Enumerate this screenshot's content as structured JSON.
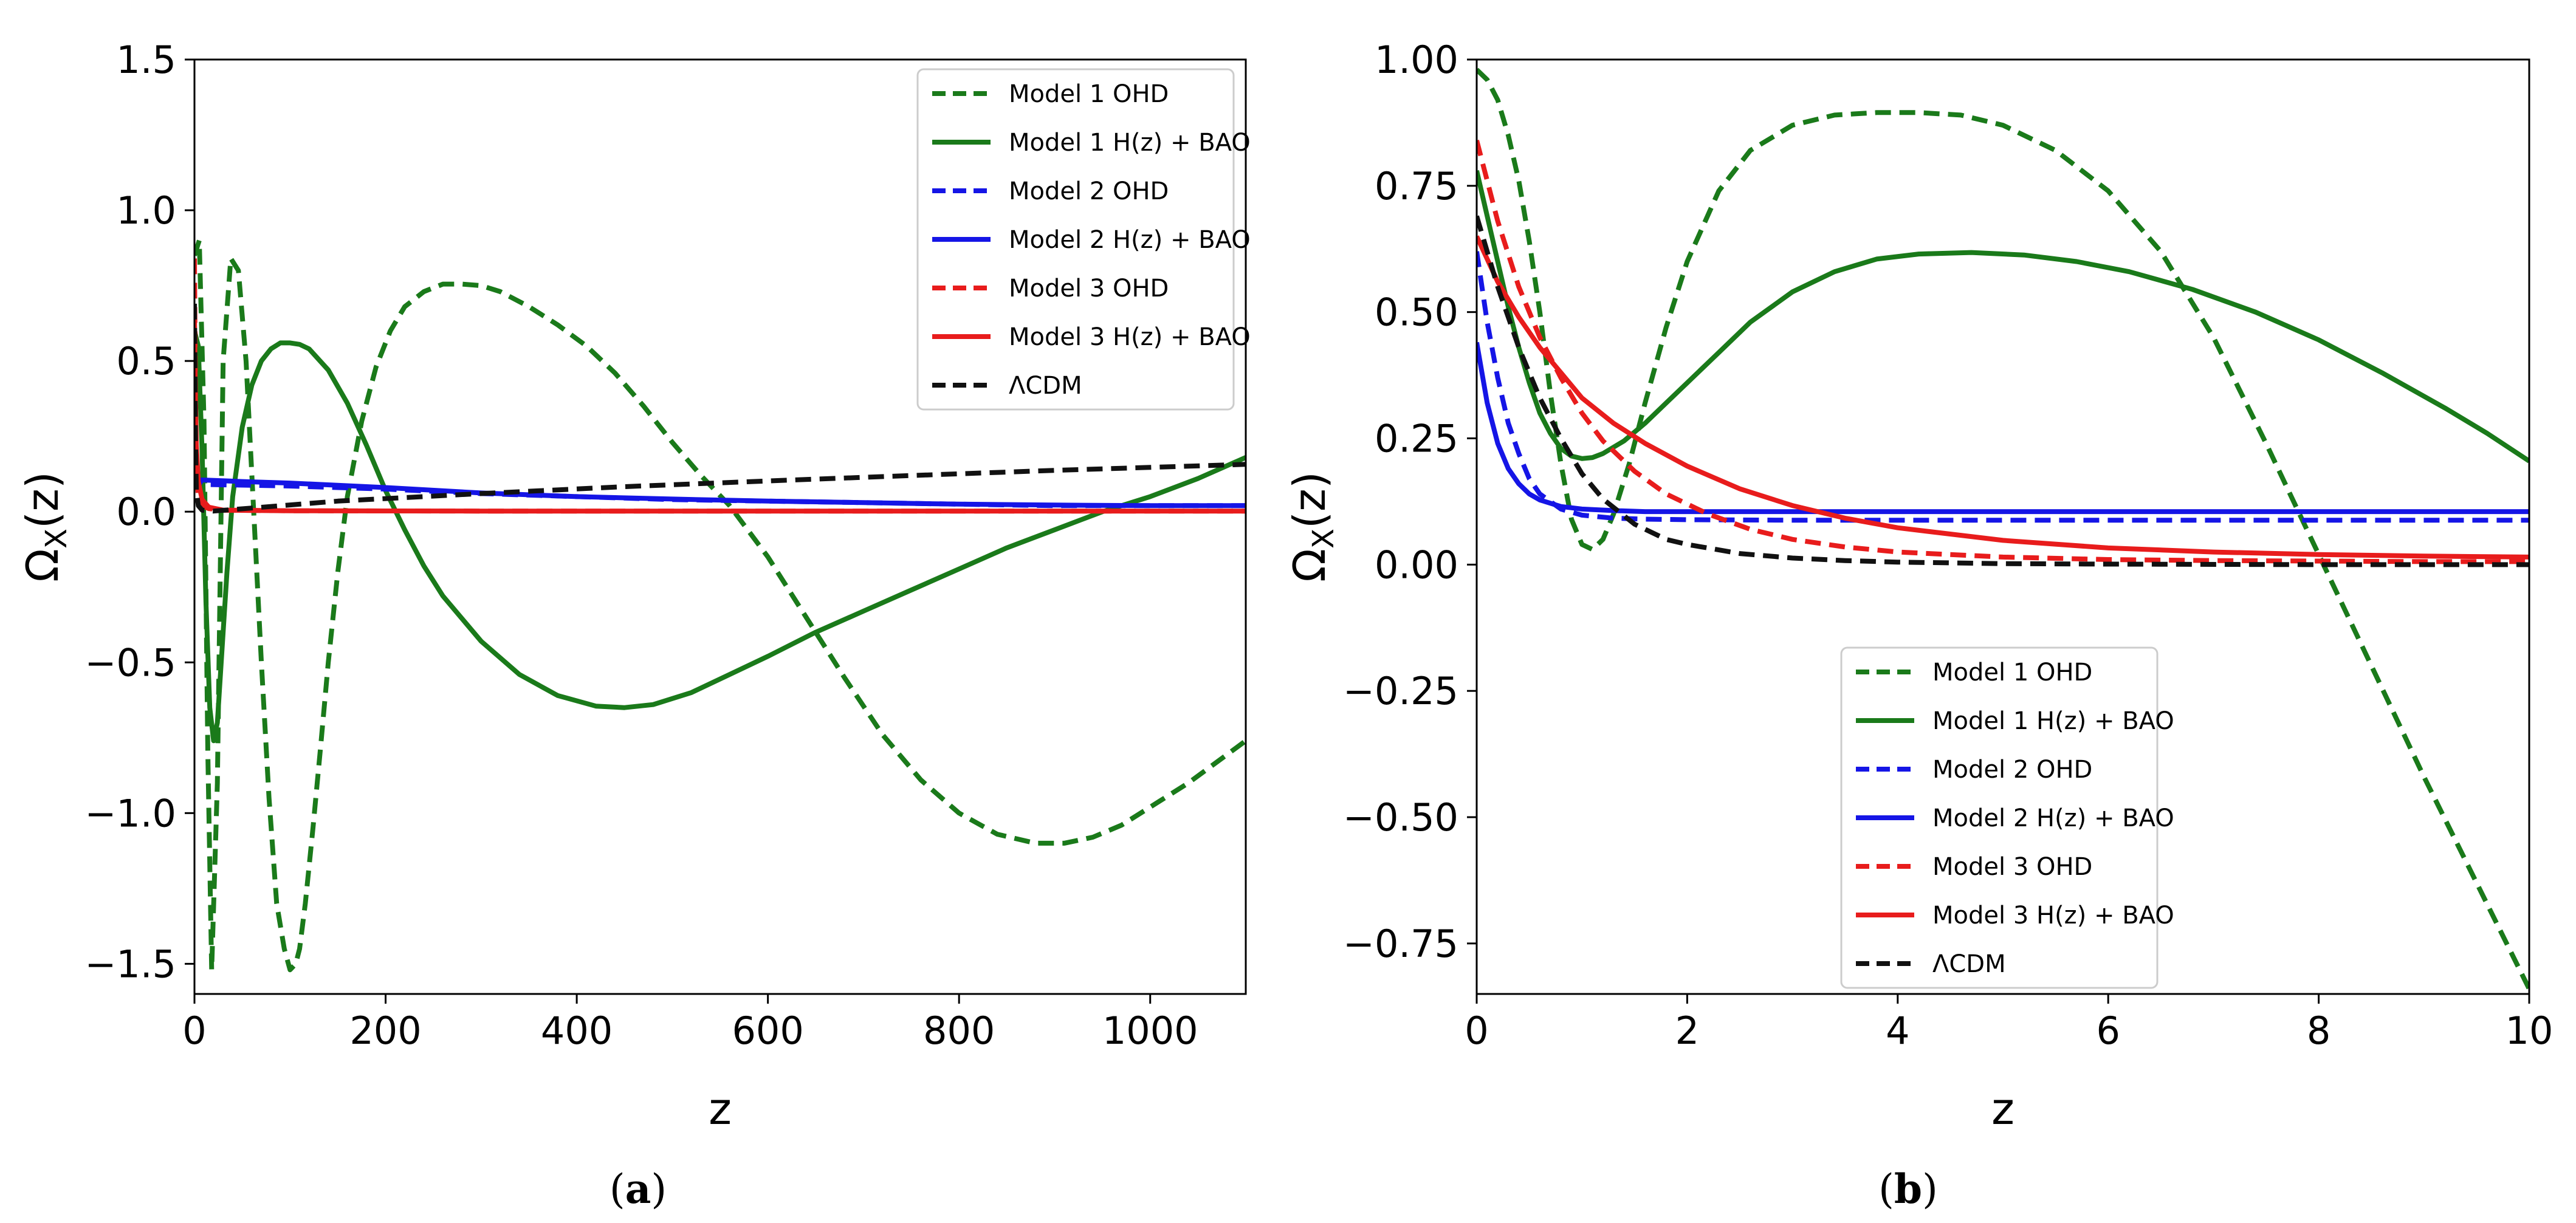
{
  "chart_data": [
    {
      "type": "line",
      "panel": "a",
      "caption_letter": "a",
      "caption_open": "(",
      "caption_close": ")",
      "xlabel": "z",
      "ylabel": "Ω_X(z)",
      "xlim": [
        0,
        1100
      ],
      "ylim": [
        -1.6,
        1.5
      ],
      "xticks": [
        0,
        200,
        400,
        600,
        800,
        1000
      ],
      "xtick_labels": [
        "0",
        "200",
        "400",
        "600",
        "800",
        "1000"
      ],
      "yticks": [
        -1.5,
        -1.0,
        -0.5,
        0.0,
        0.5,
        1.0,
        1.5
      ],
      "ytick_labels": [
        "−1.5",
        "−1.0",
        "−0.5",
        "0.0",
        "0.5",
        "1.0",
        "1.5"
      ],
      "legend_position": "top-right",
      "series": [
        {
          "name": "Model 1 OHD",
          "color": "#1a7a1a",
          "dashed": true,
          "x": [
            0,
            5,
            10,
            14,
            18,
            24,
            30,
            38,
            46,
            54,
            62,
            70,
            78,
            86,
            94,
            100,
            106,
            110,
            116,
            124,
            132,
            140,
            150,
            160,
            175,
            190,
            205,
            220,
            240,
            260,
            280,
            300,
            320,
            350,
            380,
            410,
            440,
            470,
            500,
            530,
            560,
            600,
            640,
            680,
            720,
            760,
            800,
            840,
            880,
            910,
            940,
            970,
            1000,
            1040,
            1070,
            1100
          ],
          "y": [
            0.85,
            0.9,
            0.3,
            -0.8,
            -1.52,
            -0.9,
            0.5,
            0.84,
            0.8,
            0.5,
            0.0,
            -0.5,
            -0.95,
            -1.3,
            -1.45,
            -1.52,
            -1.5,
            -1.45,
            -1.3,
            -1.05,
            -0.78,
            -0.5,
            -0.2,
            0.05,
            0.3,
            0.48,
            0.6,
            0.68,
            0.73,
            0.755,
            0.755,
            0.75,
            0.73,
            0.68,
            0.62,
            0.55,
            0.46,
            0.35,
            0.23,
            0.12,
            0.02,
            -0.15,
            -0.35,
            -0.55,
            -0.74,
            -0.89,
            -1.0,
            -1.07,
            -1.1,
            -1.1,
            -1.08,
            -1.04,
            -0.98,
            -0.9,
            -0.83,
            -0.76
          ]
        },
        {
          "name": "Model 1 H(z) + BAO",
          "color": "#1a7a1a",
          "dashed": false,
          "x": [
            0,
            4,
            8,
            12,
            16,
            20,
            24,
            28,
            34,
            40,
            50,
            60,
            70,
            80,
            90,
            100,
            110,
            120,
            140,
            160,
            180,
            200,
            220,
            240,
            260,
            300,
            340,
            380,
            420,
            450,
            480,
            520,
            560,
            600,
            650,
            700,
            750,
            800,
            850,
            900,
            950,
            1000,
            1050,
            1100
          ],
          "y": [
            0.6,
            0.55,
            0.2,
            -0.3,
            -0.65,
            -0.76,
            -0.7,
            -0.5,
            -0.2,
            0.05,
            0.28,
            0.42,
            0.5,
            0.54,
            0.56,
            0.56,
            0.555,
            0.54,
            0.47,
            0.36,
            0.22,
            0.07,
            -0.06,
            -0.18,
            -0.28,
            -0.43,
            -0.54,
            -0.61,
            -0.645,
            -0.65,
            -0.64,
            -0.6,
            -0.54,
            -0.48,
            -0.4,
            -0.33,
            -0.26,
            -0.19,
            -0.12,
            -0.06,
            0.0,
            0.05,
            0.11,
            0.18
          ]
        },
        {
          "name": "Model 2 OHD",
          "color": "#1515e6",
          "dashed": true,
          "x": [
            0,
            1,
            2,
            4,
            10,
            50,
            100,
            200,
            300,
            400,
            500,
            600,
            700,
            800,
            900,
            1000,
            1100
          ],
          "y": [
            0.62,
            0.35,
            0.13,
            0.1,
            0.09,
            0.088,
            0.085,
            0.075,
            0.06,
            0.05,
            0.04,
            0.035,
            0.03,
            0.025,
            0.02,
            0.02,
            0.02
          ]
        },
        {
          "name": "Model 2 H(z) + BAO",
          "color": "#1515e6",
          "dashed": false,
          "x": [
            0,
            1,
            2,
            4,
            10,
            50,
            100,
            200,
            300,
            400,
            500,
            600,
            700,
            800,
            900,
            1000,
            1100
          ],
          "y": [
            0.45,
            0.2,
            0.11,
            0.105,
            0.105,
            0.1,
            0.095,
            0.08,
            0.062,
            0.05,
            0.042,
            0.035,
            0.03,
            0.025,
            0.022,
            0.02,
            0.02
          ]
        },
        {
          "name": "Model 3 OHD",
          "color": "#e81c1c",
          "dashed": true,
          "x": [
            0,
            1,
            2,
            4,
            8,
            15,
            30,
            100,
            300,
            600,
            1100
          ],
          "y": [
            0.84,
            0.4,
            0.15,
            0.05,
            0.02,
            0.01,
            0.005,
            0.003,
            0.002,
            0.002,
            0.002
          ]
        },
        {
          "name": "Model 3 H(z) + BAO",
          "color": "#e81c1c",
          "dashed": false,
          "x": [
            0,
            1,
            2,
            4,
            8,
            15,
            30,
            100,
            300,
            600,
            1100
          ],
          "y": [
            0.65,
            0.38,
            0.22,
            0.1,
            0.04,
            0.015,
            0.005,
            0.003,
            0.002,
            0.002,
            0.002
          ]
        },
        {
          "name": "ΛCDM",
          "color": "#111111",
          "dashed": true,
          "x": [
            0,
            1,
            2,
            4,
            8,
            20,
            60,
            150,
            300,
            450,
            600,
            750,
            900,
            1000,
            1100
          ],
          "y": [
            0.69,
            0.25,
            0.07,
            0.02,
            0.005,
            0.002,
            0.012,
            0.035,
            0.06,
            0.083,
            0.102,
            0.12,
            0.137,
            0.147,
            0.157
          ]
        }
      ]
    },
    {
      "type": "line",
      "panel": "b",
      "caption_letter": "b",
      "caption_open": "(",
      "caption_close": ")",
      "xlabel": "z",
      "ylabel": "Ω_X(z)",
      "xlim": [
        0,
        10
      ],
      "ylim": [
        -0.85,
        1.0
      ],
      "xticks": [
        0,
        2,
        4,
        6,
        8,
        10
      ],
      "xtick_labels": [
        "0",
        "2",
        "4",
        "6",
        "8",
        "10"
      ],
      "yticks": [
        -0.75,
        -0.5,
        -0.25,
        0.0,
        0.25,
        0.5,
        0.75,
        1.0
      ],
      "ytick_labels": [
        "−0.75",
        "−0.50",
        "−0.25",
        "0.00",
        "0.25",
        "0.50",
        "0.75",
        "1.00"
      ],
      "legend_position": "lower-center",
      "series": [
        {
          "name": "Model 1 OHD",
          "color": "#1a7a1a",
          "dashed": true,
          "x": [
            0,
            0.1,
            0.2,
            0.3,
            0.4,
            0.5,
            0.6,
            0.7,
            0.8,
            0.9,
            1.0,
            1.1,
            1.2,
            1.3,
            1.45,
            1.6,
            1.8,
            2.0,
            2.3,
            2.6,
            3.0,
            3.4,
            3.8,
            4.2,
            4.6,
            5.0,
            5.5,
            6.0,
            6.5,
            7.0,
            7.5,
            8.0,
            8.5,
            9.0,
            9.5,
            10.0
          ],
          "y": [
            0.98,
            0.96,
            0.92,
            0.85,
            0.76,
            0.64,
            0.5,
            0.34,
            0.2,
            0.09,
            0.04,
            0.03,
            0.05,
            0.1,
            0.2,
            0.32,
            0.47,
            0.6,
            0.74,
            0.82,
            0.87,
            0.89,
            0.895,
            0.895,
            0.89,
            0.87,
            0.82,
            0.74,
            0.62,
            0.45,
            0.24,
            0.02,
            -0.2,
            -0.42,
            -0.63,
            -0.84
          ]
        },
        {
          "name": "Model 1 H(z) + BAO",
          "color": "#1a7a1a",
          "dashed": false,
          "x": [
            0,
            0.1,
            0.2,
            0.3,
            0.4,
            0.5,
            0.6,
            0.7,
            0.8,
            0.9,
            1.0,
            1.1,
            1.2,
            1.4,
            1.6,
            1.8,
            2.0,
            2.3,
            2.6,
            3.0,
            3.4,
            3.8,
            4.2,
            4.7,
            5.2,
            5.7,
            6.2,
            6.8,
            7.4,
            8.0,
            8.6,
            9.2,
            9.6,
            10.0
          ],
          "y": [
            0.78,
            0.69,
            0.6,
            0.51,
            0.43,
            0.36,
            0.3,
            0.26,
            0.23,
            0.215,
            0.21,
            0.212,
            0.22,
            0.245,
            0.28,
            0.32,
            0.36,
            0.42,
            0.48,
            0.54,
            0.58,
            0.605,
            0.615,
            0.618,
            0.613,
            0.6,
            0.58,
            0.545,
            0.5,
            0.445,
            0.38,
            0.31,
            0.26,
            0.205
          ]
        },
        {
          "name": "Model 2 OHD",
          "color": "#1515e6",
          "dashed": true,
          "x": [
            0,
            0.1,
            0.2,
            0.3,
            0.4,
            0.5,
            0.6,
            0.8,
            1.0,
            1.3,
            1.6,
            2.0,
            3.0,
            4.0,
            6.0,
            8.0,
            10.0
          ],
          "y": [
            0.62,
            0.48,
            0.37,
            0.28,
            0.22,
            0.17,
            0.14,
            0.11,
            0.098,
            0.092,
            0.09,
            0.089,
            0.088,
            0.088,
            0.088,
            0.088,
            0.088
          ]
        },
        {
          "name": "Model 2 H(z) + BAO",
          "color": "#1515e6",
          "dashed": false,
          "x": [
            0,
            0.1,
            0.2,
            0.3,
            0.4,
            0.5,
            0.6,
            0.8,
            1.0,
            1.3,
            1.6,
            2.0,
            3.0,
            4.0,
            6.0,
            8.0,
            10.0
          ],
          "y": [
            0.44,
            0.32,
            0.24,
            0.19,
            0.16,
            0.14,
            0.128,
            0.115,
            0.11,
            0.107,
            0.105,
            0.105,
            0.105,
            0.105,
            0.105,
            0.105,
            0.105
          ]
        },
        {
          "name": "Model 3 OHD",
          "color": "#e81c1c",
          "dashed": true,
          "x": [
            0,
            0.2,
            0.4,
            0.6,
            0.8,
            1.0,
            1.2,
            1.5,
            1.8,
            2.2,
            2.6,
            3.0,
            3.5,
            4.0,
            5.0,
            6.0,
            7.0,
            8.0,
            9.0,
            10.0
          ],
          "y": [
            0.84,
            0.68,
            0.55,
            0.45,
            0.37,
            0.3,
            0.245,
            0.185,
            0.14,
            0.1,
            0.07,
            0.05,
            0.035,
            0.025,
            0.015,
            0.01,
            0.008,
            0.007,
            0.006,
            0.006
          ]
        },
        {
          "name": "Model 3 H(z) + BAO",
          "color": "#e81c1c",
          "dashed": false,
          "x": [
            0,
            0.2,
            0.4,
            0.6,
            0.8,
            1.0,
            1.3,
            1.6,
            2.0,
            2.5,
            3.0,
            3.5,
            4.0,
            5.0,
            6.0,
            7.0,
            8.0,
            9.0,
            10.0
          ],
          "y": [
            0.65,
            0.56,
            0.49,
            0.43,
            0.38,
            0.33,
            0.28,
            0.24,
            0.195,
            0.15,
            0.117,
            0.092,
            0.073,
            0.048,
            0.033,
            0.025,
            0.02,
            0.017,
            0.015
          ]
        },
        {
          "name": "ΛCDM",
          "color": "#111111",
          "dashed": true,
          "x": [
            0,
            0.2,
            0.4,
            0.6,
            0.8,
            1.0,
            1.2,
            1.5,
            1.8,
            2.0,
            2.5,
            3.0,
            3.5,
            4.0,
            5.0,
            6.0,
            8.0,
            10.0
          ],
          "y": [
            0.69,
            0.55,
            0.43,
            0.33,
            0.25,
            0.18,
            0.13,
            0.08,
            0.05,
            0.04,
            0.022,
            0.013,
            0.008,
            0.005,
            0.002,
            0.001,
            0.0,
            0.0
          ]
        }
      ]
    }
  ]
}
